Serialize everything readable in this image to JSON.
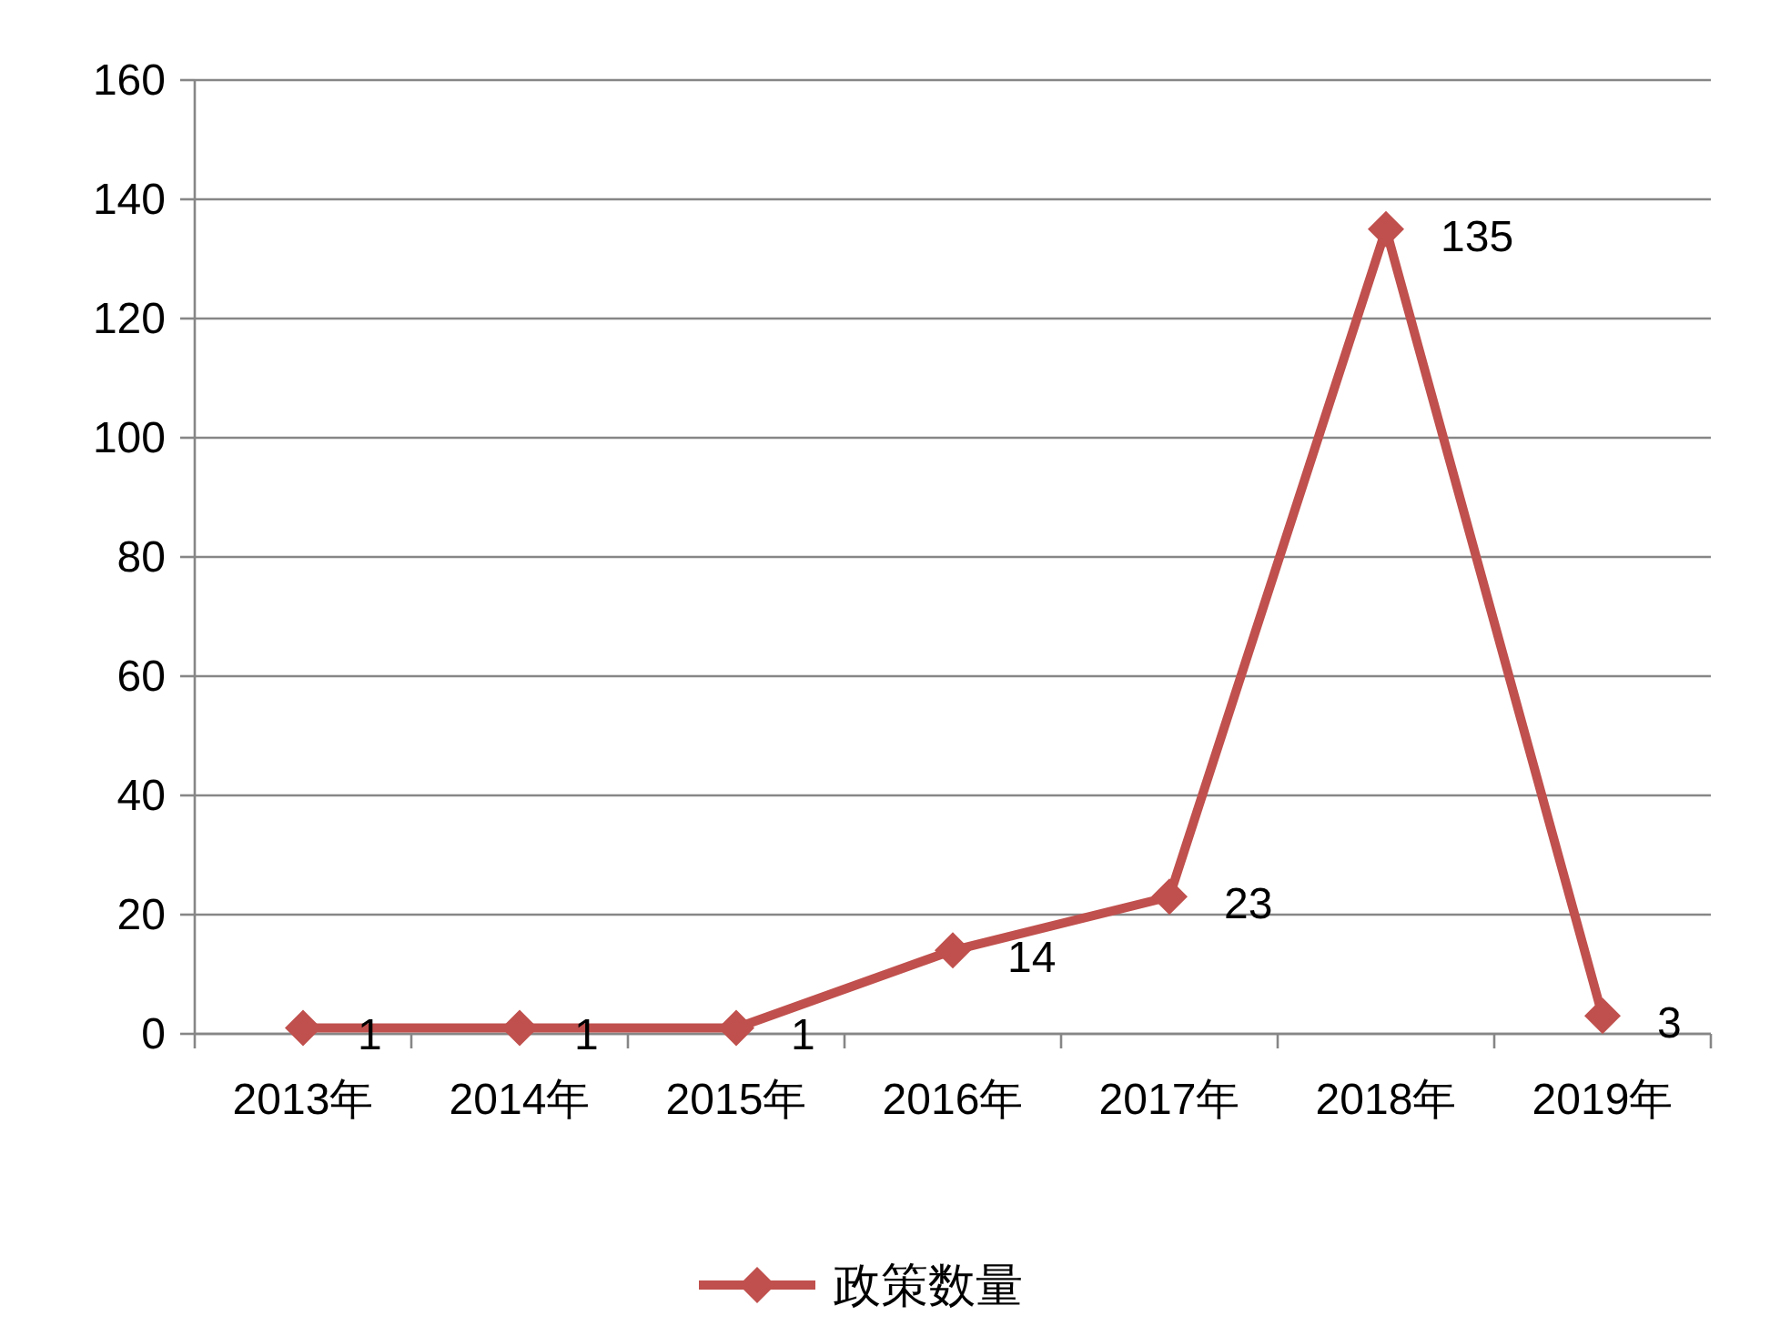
{
  "chart_data": {
    "type": "line",
    "categories": [
      "2013年",
      "2014年",
      "2015年",
      "2016年",
      "2017年",
      "2018年",
      "2019年"
    ],
    "series": [
      {
        "name": "政策数量",
        "color": "#c0504d",
        "values": [
          1,
          1,
          1,
          14,
          23,
          135,
          3
        ]
      }
    ],
    "ylim": [
      0,
      160
    ],
    "yticks": [
      0,
      20,
      40,
      60,
      80,
      100,
      120,
      140,
      160
    ],
    "grid": "y",
    "legend": "bottom",
    "marker": "diamond",
    "line_style": "solid",
    "data_labels": true
  }
}
